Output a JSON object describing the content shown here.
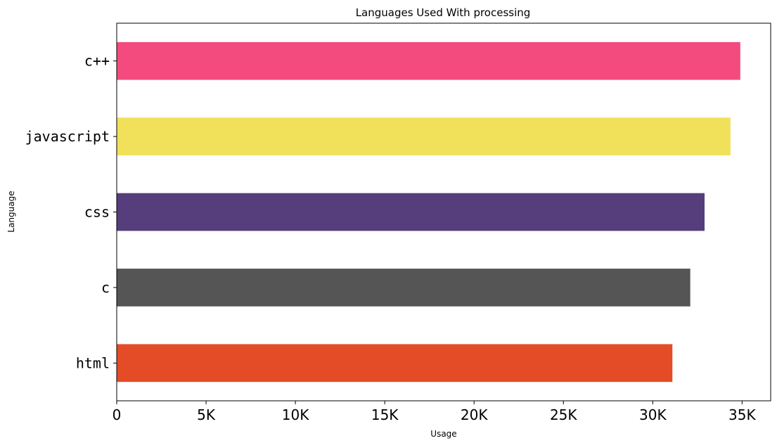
{
  "chart_data": {
    "type": "bar",
    "orientation": "horizontal",
    "title": "Languages Used With processing",
    "xlabel": "Usage",
    "ylabel": "Language",
    "categories": [
      "c++",
      "javascript",
      "css",
      "c",
      "html"
    ],
    "values": [
      34900,
      34350,
      32900,
      32100,
      31100
    ],
    "colors": [
      "#f34b7d",
      "#f1e05a",
      "#563d7c",
      "#555555",
      "#e34c26"
    ],
    "xlim": [
      0,
      36600
    ],
    "x_ticks": [
      0,
      5000,
      10000,
      15000,
      20000,
      25000,
      30000,
      35000
    ],
    "x_tick_labels": [
      "0",
      "5K",
      "10K",
      "15K",
      "20K",
      "25K",
      "30K",
      "35K"
    ],
    "grid": false,
    "legend": "none"
  }
}
